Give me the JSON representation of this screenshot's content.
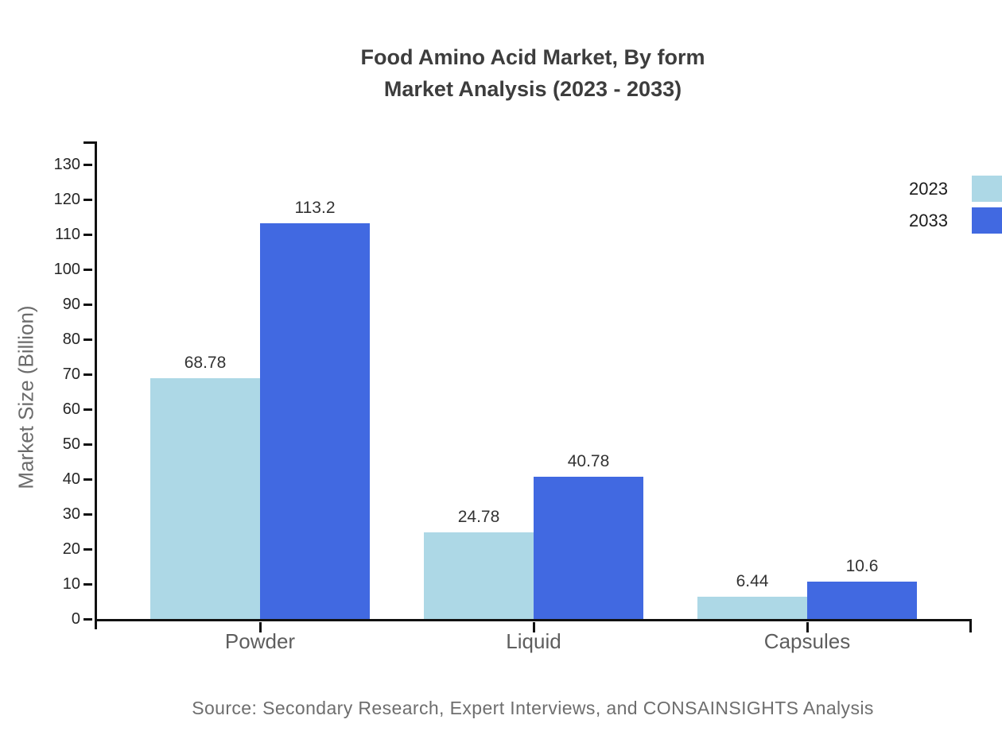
{
  "title": {
    "line1": "Food Amino Acid Market, By form",
    "line2": "Market Analysis (2023 - 2033)"
  },
  "source": "Source: Secondary Research, Expert Interviews, and CONSAINSIGHTS Analysis",
  "colors": {
    "series_2023": "#ADD8E6",
    "series_2033": "#4169E1",
    "axis": "#111111",
    "title_text": "#3D3D3D",
    "tick_text": "#262626",
    "category_text": "#5E5E5E",
    "value_text": "#333333",
    "source_text": "#6E6E6E"
  },
  "chart_data": {
    "type": "bar",
    "title": "Food Amino Acid Market, By form Market Analysis (2023 - 2033)",
    "categories": [
      "Powder",
      "Liquid",
      "Capsules"
    ],
    "series": [
      {
        "name": "2023",
        "color": "#ADD8E6",
        "values": [
          68.78,
          24.78,
          6.44
        ]
      },
      {
        "name": "2033",
        "color": "#4169E1",
        "values": [
          113.2,
          40.78,
          10.6
        ]
      }
    ],
    "value_labels": [
      [
        "68.78",
        "24.78",
        "6.44"
      ],
      [
        "113.2",
        "40.78",
        "10.6"
      ]
    ],
    "xlabel": "",
    "ylabel": "Market Size (Billion)",
    "ylim": [
      0,
      130
    ],
    "ytick_step": 10,
    "yticks": [
      0,
      10,
      20,
      30,
      40,
      50,
      60,
      70,
      80,
      90,
      100,
      110,
      120,
      130
    ],
    "grid": false,
    "legend_position": "right-top-outside"
  },
  "legend": {
    "items": [
      {
        "label": "2023",
        "color": "#ADD8E6"
      },
      {
        "label": "2033",
        "color": "#4169E1"
      }
    ]
  }
}
